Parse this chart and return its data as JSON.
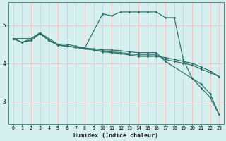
{
  "xlabel": "Humidex (Indice chaleur)",
  "xlim": [
    -0.5,
    23.5
  ],
  "ylim": [
    2.4,
    5.6
  ],
  "yticks": [
    3,
    4,
    5
  ],
  "xticks": [
    0,
    1,
    2,
    3,
    4,
    5,
    6,
    7,
    8,
    9,
    10,
    11,
    12,
    13,
    14,
    15,
    16,
    17,
    18,
    19,
    20,
    21,
    22,
    23
  ],
  "bg_color": "#d6efef",
  "grid_color": "#f5c0c0",
  "line_color": "#2a7068",
  "lines": [
    {
      "x": [
        0,
        2,
        3,
        4,
        5,
        6,
        7,
        8,
        10,
        11,
        12,
        13,
        14,
        15,
        16,
        17,
        18,
        19,
        20,
        21,
        22,
        23
      ],
      "y": [
        4.65,
        4.65,
        4.8,
        4.65,
        4.5,
        4.5,
        4.45,
        4.4,
        5.3,
        5.25,
        5.35,
        5.35,
        5.35,
        5.35,
        5.35,
        5.2,
        5.2,
        4.1,
        3.6,
        3.35,
        3.1,
        2.65
      ]
    },
    {
      "x": [
        0,
        1,
        2,
        3,
        4,
        5,
        6,
        7,
        8,
        9,
        10,
        11,
        12,
        13,
        14,
        15,
        16,
        17,
        20,
        21,
        22,
        23
      ],
      "y": [
        4.65,
        4.55,
        4.65,
        4.8,
        4.6,
        4.48,
        4.45,
        4.42,
        4.4,
        4.38,
        4.35,
        4.35,
        4.33,
        4.3,
        4.28,
        4.28,
        4.28,
        4.05,
        3.6,
        3.45,
        3.2,
        2.65
      ]
    },
    {
      "x": [
        0,
        1,
        2,
        3,
        4,
        5,
        6,
        7,
        8,
        9,
        10,
        11,
        12,
        13,
        14,
        15,
        16,
        17,
        18,
        19,
        20,
        21,
        22,
        23
      ],
      "y": [
        4.65,
        4.55,
        4.6,
        4.78,
        4.6,
        4.48,
        4.45,
        4.42,
        4.38,
        4.35,
        4.32,
        4.3,
        4.28,
        4.25,
        4.22,
        4.22,
        4.22,
        4.1,
        4.05,
        4.0,
        3.95,
        3.85,
        3.75,
        3.65
      ]
    },
    {
      "x": [
        0,
        1,
        2,
        3,
        4,
        5,
        6,
        7,
        8,
        9,
        10,
        11,
        12,
        13,
        14,
        15,
        16,
        17,
        18,
        19,
        20,
        21,
        22,
        23
      ],
      "y": [
        4.65,
        4.55,
        4.6,
        4.78,
        4.6,
        4.48,
        4.45,
        4.42,
        4.38,
        4.35,
        4.3,
        4.28,
        4.25,
        4.22,
        4.18,
        4.18,
        4.18,
        4.15,
        4.1,
        4.05,
        4.0,
        3.9,
        3.8,
        3.65
      ]
    }
  ]
}
